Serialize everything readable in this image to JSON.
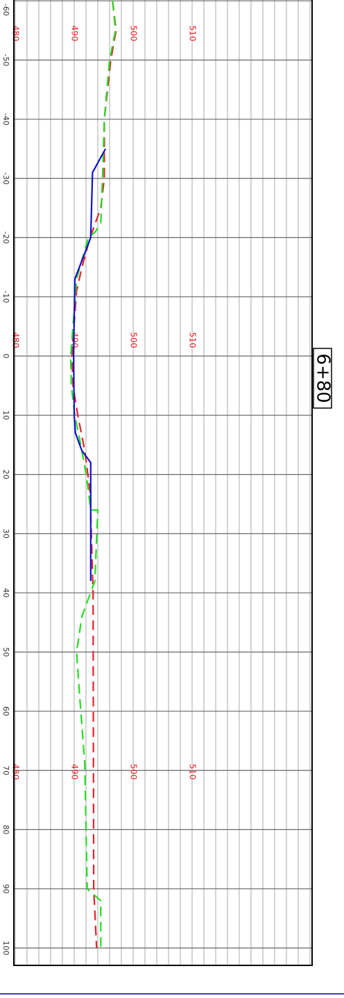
{
  "chart_data": {
    "type": "line",
    "title": "6+80",
    "xlim": [
      -60,
      100
    ],
    "xticks": [
      -60,
      -50,
      -40,
      -30,
      -20,
      -10,
      0,
      10,
      20,
      30,
      40,
      50,
      60,
      70,
      80,
      90,
      100
    ],
    "ylim": [
      480,
      530
    ],
    "yticks": [
      480,
      490,
      500,
      510
    ],
    "minor_grid_step": 2,
    "grid": true,
    "series": [
      {
        "color": "#e8202a",
        "dash": true,
        "x": [
          -60,
          -55,
          -50,
          -40,
          -30,
          -25,
          -20,
          -15,
          -11,
          0,
          5,
          10,
          16,
          23,
          40,
          90,
          100
        ],
        "values": [
          496.5,
          497.1,
          496.2,
          495.1,
          495.1,
          494.5,
          492.7,
          491.3,
          490.4,
          489.6,
          489.8,
          490.6,
          491.8,
          492.7,
          493.2,
          493.3,
          493.8
        ]
      },
      {
        "color": "#22dd22",
        "dash": true,
        "x": [
          -60,
          -55,
          -50,
          -40,
          -30,
          -22.5,
          -21,
          -20,
          -13,
          0,
          5,
          10,
          16,
          20.5,
          26,
          26,
          38,
          44,
          50,
          57,
          69,
          90,
          92,
          100
        ],
        "values": [
          496.5,
          497,
          496,
          495.1,
          494.8,
          494.5,
          493.6,
          492.4,
          490.4,
          489.4,
          489.5,
          490.1,
          491.3,
          492.1,
          492.8,
          494,
          493.5,
          491.3,
          490.4,
          490.9,
          491.8,
          492.2,
          494.5,
          494.5
        ]
      },
      {
        "color": "#1010cc",
        "dash": false,
        "x": [
          -35,
          -31,
          -20,
          -13,
          0,
          10,
          13,
          16,
          18,
          38
        ],
        "values": [
          495.3,
          493.1,
          492.8,
          490.1,
          489.9,
          490,
          490.2,
          491.3,
          492.8,
          492.8
        ]
      }
    ]
  }
}
